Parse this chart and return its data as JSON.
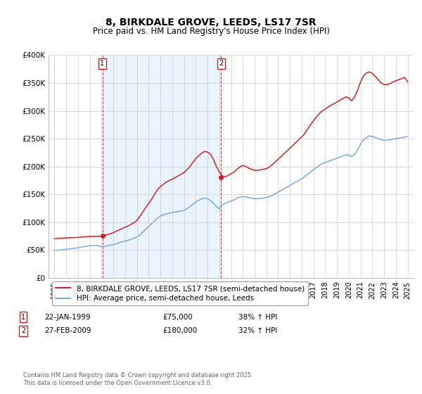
{
  "title": "8, BIRKDALE GROVE, LEEDS, LS17 7SR",
  "subtitle": "Price paid vs. HM Land Registry's House Price Index (HPI)",
  "title_fontsize": 10,
  "subtitle_fontsize": 8.5,
  "background_color": "#ffffff",
  "plot_bg_color": "#ffffff",
  "grid_color": "#cccccc",
  "red_color": "#cc2222",
  "blue_color": "#7aaadd",
  "shade_color": "#ddeeff",
  "ylim": [
    0,
    400000
  ],
  "yticks": [
    0,
    50000,
    100000,
    150000,
    200000,
    250000,
    300000,
    350000,
    400000
  ],
  "ytick_labels": [
    "£0",
    "£50K",
    "£100K",
    "£150K",
    "£200K",
    "£250K",
    "£300K",
    "£350K",
    "£400K"
  ],
  "purchase1_x": 1999.07,
  "purchase1_price": 75000,
  "purchase2_x": 2009.16,
  "purchase2_price": 180000,
  "legend_line1": "8, BIRKDALE GROVE, LEEDS, LS17 7SR (semi-detached house)",
  "legend_line2": "HPI: Average price, semi-detached house, Leeds",
  "footer": "Contains HM Land Registry data © Crown copyright and database right 2025.\nThis data is licensed under the Open Government Licence v3.0.",
  "xlim_start": 1994.5,
  "xlim_end": 2025.5,
  "hpi_years": [
    1995,
    1995.25,
    1995.5,
    1995.75,
    1996,
    1996.25,
    1996.5,
    1996.75,
    1997,
    1997.25,
    1997.5,
    1997.75,
    1998,
    1998.25,
    1998.5,
    1998.75,
    1999,
    1999.25,
    1999.5,
    1999.75,
    2000,
    2000.25,
    2000.5,
    2000.75,
    2001,
    2001.25,
    2001.5,
    2001.75,
    2002,
    2002.25,
    2002.5,
    2002.75,
    2003,
    2003.25,
    2003.5,
    2003.75,
    2004,
    2004.25,
    2004.5,
    2004.75,
    2005,
    2005.25,
    2005.5,
    2005.75,
    2006,
    2006.25,
    2006.5,
    2006.75,
    2007,
    2007.25,
    2007.5,
    2007.75,
    2008,
    2008.25,
    2008.5,
    2008.75,
    2009,
    2009.25,
    2009.5,
    2009.75,
    2010,
    2010.25,
    2010.5,
    2010.75,
    2011,
    2011.25,
    2011.5,
    2011.75,
    2012,
    2012.25,
    2012.5,
    2012.75,
    2013,
    2013.25,
    2013.5,
    2013.75,
    2014,
    2014.25,
    2014.5,
    2014.75,
    2015,
    2015.25,
    2015.5,
    2015.75,
    2016,
    2016.25,
    2016.5,
    2016.75,
    2017,
    2017.25,
    2017.5,
    2017.75,
    2018,
    2018.25,
    2018.5,
    2018.75,
    2019,
    2019.25,
    2019.5,
    2019.75,
    2020,
    2020.25,
    2020.5,
    2020.75,
    2021,
    2021.25,
    2021.5,
    2021.75,
    2022,
    2022.25,
    2022.5,
    2022.75,
    2023,
    2023.25,
    2023.5,
    2023.75,
    2024,
    2024.25,
    2024.5,
    2024.75,
    2025
  ],
  "hpi_values": [
    49000,
    49500,
    50000,
    50500,
    51000,
    51800,
    52500,
    53200,
    54000,
    55000,
    56000,
    56800,
    57500,
    57800,
    58000,
    57500,
    56000,
    56500,
    57500,
    58500,
    59500,
    61000,
    63000,
    64500,
    66000,
    67500,
    69000,
    71000,
    73000,
    77000,
    82000,
    87000,
    92000,
    97000,
    102000,
    107000,
    111000,
    113000,
    115000,
    116000,
    117000,
    118000,
    119000,
    120000,
    121000,
    124000,
    128000,
    132000,
    136000,
    139000,
    142000,
    143000,
    142000,
    139000,
    134000,
    128000,
    124000,
    131000,
    134000,
    136000,
    138000,
    140000,
    143000,
    145000,
    146000,
    145000,
    144000,
    143000,
    142000,
    142000,
    143000,
    143000,
    144000,
    146000,
    148000,
    151000,
    154000,
    157000,
    160000,
    163000,
    166000,
    169000,
    172000,
    175000,
    178000,
    182000,
    186000,
    190000,
    194000,
    198000,
    202000,
    205000,
    207000,
    209000,
    211000,
    213000,
    215000,
    217000,
    219000,
    221000,
    220000,
    218000,
    222000,
    230000,
    240000,
    248000,
    252000,
    255000,
    254000,
    252000,
    250000,
    248000,
    247000,
    247000,
    248000,
    249000,
    250000,
    251000,
    252000,
    253000,
    254000
  ],
  "red_values": [
    70000,
    70500,
    71000,
    71300,
    71500,
    71800,
    72000,
    72300,
    72500,
    73000,
    73500,
    73800,
    74000,
    74200,
    74500,
    74300,
    75000,
    76000,
    77500,
    79000,
    81000,
    83500,
    86000,
    88500,
    91000,
    93000,
    96000,
    99000,
    103000,
    110000,
    118000,
    126000,
    133000,
    141000,
    150000,
    158000,
    164000,
    168000,
    172000,
    175000,
    177000,
    180000,
    183000,
    186000,
    189000,
    194000,
    200000,
    207000,
    214000,
    219000,
    224000,
    227000,
    226000,
    222000,
    213000,
    200000,
    190000,
    183000,
    181000,
    184000,
    187000,
    190000,
    195000,
    199000,
    202000,
    200000,
    197000,
    195000,
    193000,
    193000,
    194000,
    195000,
    196000,
    199000,
    203000,
    208000,
    213000,
    218000,
    223000,
    228000,
    233000,
    238000,
    243000,
    248000,
    253000,
    259000,
    267000,
    275000,
    282000,
    289000,
    295000,
    300000,
    303000,
    307000,
    310000,
    313000,
    316000,
    319000,
    322000,
    325000,
    323000,
    318000,
    325000,
    337000,
    352000,
    363000,
    368000,
    370000,
    367000,
    362000,
    356000,
    350000,
    347000,
    347000,
    349000,
    352000,
    354000,
    356000,
    358000,
    360000,
    352000
  ]
}
